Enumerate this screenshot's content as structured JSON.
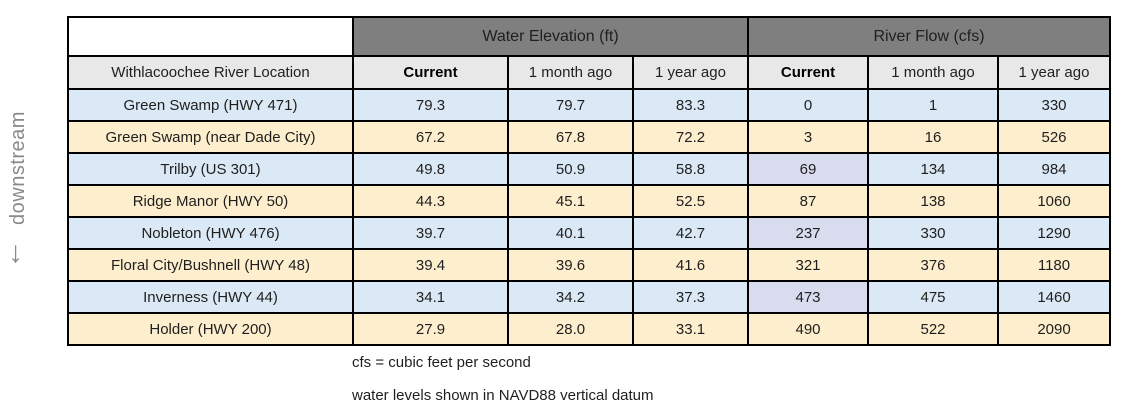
{
  "side_label": "downstream",
  "down_arrow_icon": "↓",
  "table": {
    "location_header": "Withlacoochee River Location",
    "group_headers": [
      "Water Elevation (ft)",
      "River Flow (cfs)"
    ],
    "sub_headers": [
      "Current",
      "1 month ago",
      "1 year ago",
      "Current",
      "1 month ago",
      "1 year ago"
    ],
    "rows": [
      {
        "location": "Green Swamp (HWY 471)",
        "tone": "blue",
        "elevation": {
          "current": "79.3",
          "one_month_ago": "79.7",
          "one_year_ago": "83.3"
        },
        "flow": {
          "current": "0",
          "one_month_ago": "1",
          "one_year_ago": "330"
        },
        "flow_current_highlighted": false
      },
      {
        "location": "Green Swamp (near Dade City)",
        "tone": "tan",
        "elevation": {
          "current": "67.2",
          "one_month_ago": "67.8",
          "one_year_ago": "72.2"
        },
        "flow": {
          "current": "3",
          "one_month_ago": "16",
          "one_year_ago": "526"
        },
        "flow_current_highlighted": false
      },
      {
        "location": "Trilby (US 301)",
        "tone": "blue",
        "elevation": {
          "current": "49.8",
          "one_month_ago": "50.9",
          "one_year_ago": "58.8"
        },
        "flow": {
          "current": "69",
          "one_month_ago": "134",
          "one_year_ago": "984"
        },
        "flow_current_highlighted": true
      },
      {
        "location": "Ridge Manor (HWY 50)",
        "tone": "tan",
        "elevation": {
          "current": "44.3",
          "one_month_ago": "45.1",
          "one_year_ago": "52.5"
        },
        "flow": {
          "current": "87",
          "one_month_ago": "138",
          "one_year_ago": "1060"
        },
        "flow_current_highlighted": false
      },
      {
        "location": "Nobleton (HWY 476)",
        "tone": "blue",
        "elevation": {
          "current": "39.7",
          "one_month_ago": "40.1",
          "one_year_ago": "42.7"
        },
        "flow": {
          "current": "237",
          "one_month_ago": "330",
          "one_year_ago": "1290"
        },
        "flow_current_highlighted": true
      },
      {
        "location": "Floral City/Bushnell (HWY 48)",
        "tone": "tan",
        "elevation": {
          "current": "39.4",
          "one_month_ago": "39.6",
          "one_year_ago": "41.6"
        },
        "flow": {
          "current": "321",
          "one_month_ago": "376",
          "one_year_ago": "1180"
        },
        "flow_current_highlighted": false
      },
      {
        "location": "Inverness (HWY 44)",
        "tone": "blue",
        "elevation": {
          "current": "34.1",
          "one_month_ago": "34.2",
          "one_year_ago": "37.3"
        },
        "flow": {
          "current": "473",
          "one_month_ago": "475",
          "one_year_ago": "1460"
        },
        "flow_current_highlighted": true
      },
      {
        "location": "Holder (HWY 200)",
        "tone": "tan",
        "elevation": {
          "current": "27.9",
          "one_month_ago": "28.0",
          "one_year_ago": "33.1"
        },
        "flow": {
          "current": "490",
          "one_month_ago": "522",
          "one_year_ago": "2090"
        },
        "flow_current_highlighted": false
      }
    ]
  },
  "notes": [
    "cfs = cubic feet per second",
    "water levels shown in NAVD88 vertical datum"
  ],
  "colors": {
    "header_dark": "#7f7f7f",
    "header_light": "#e8e8e8",
    "row_blue": "#dbe8f5",
    "row_tan": "#fdeecd",
    "flow_current_highlight": "#d9dcee",
    "border": "#000000",
    "side_label_gray": "#8a8a8a"
  }
}
